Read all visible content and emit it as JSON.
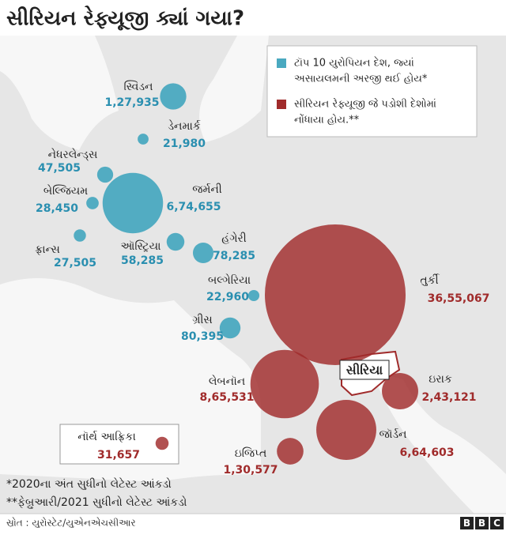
{
  "title": "સીરિયન રેફ્યૂજી ક્યાં ગયા?",
  "legend": [
    {
      "color": "#4aa9c0",
      "lines": [
        "ટૉપ 10 યુરોપિયન દેશ, જ્યાં",
        "અસાયલમની અરજી થઈ હોય*"
      ]
    },
    {
      "color": "#a02b2b",
      "lines": [
        "સીરિયન રેફ્યૂજી જે પડોશી દેશોમાં",
        "નોંધાયા હોય.**"
      ]
    }
  ],
  "origin_label": "સીરિયા",
  "points": [
    {
      "name": "સ્વિડન",
      "value": 127935,
      "value_label": "1,27,935",
      "group": 0
    },
    {
      "name": "ડેનમાર્ક",
      "value": 21980,
      "value_label": "21,980",
      "group": 0
    },
    {
      "name": "નેધરલેન્ડ્સ",
      "value": 47505,
      "value_label": "47,505",
      "group": 0
    },
    {
      "name": "બેલ્જિયમ",
      "value": 28450,
      "value_label": "28,450",
      "group": 0
    },
    {
      "name": "જર્મની",
      "value": 674655,
      "value_label": "6,74,655",
      "group": 0
    },
    {
      "name": "ફ્રાન્સ",
      "value": 27505,
      "value_label": "27,505",
      "group": 0
    },
    {
      "name": "ઑસ્ટ્રિયા",
      "value": 58285,
      "value_label": "58,285",
      "group": 0
    },
    {
      "name": "હંગેરી",
      "value": 78285,
      "value_label": "78,285",
      "group": 0
    },
    {
      "name": "બલ્ગેરિયા",
      "value": 22960,
      "value_label": "22,960",
      "group": 0
    },
    {
      "name": "ગ્રીસ",
      "value": 80395,
      "value_label": "80,395",
      "group": 0
    },
    {
      "name": "તુર્કી",
      "value": 3655067,
      "value_label": "36,55,067",
      "group": 1
    },
    {
      "name": "લેબનૉન",
      "value": 865531,
      "value_label": "8,65,531",
      "group": 1
    },
    {
      "name": "ઇરાક",
      "value": 243121,
      "value_label": "2,43,121",
      "group": 1
    },
    {
      "name": "જૉર્ડન",
      "value": 664603,
      "value_label": "6,64,603",
      "group": 1
    },
    {
      "name": "ઇજિપ્ત",
      "value": 130577,
      "value_label": "1,30,577",
      "group": 1
    },
    {
      "name": "નૉર્થ આફ્રિકા",
      "value": 31657,
      "value_label": "31,657",
      "group": 1
    }
  ],
  "footnotes": [
    "*2020ના અંત સુધીનો લેટેસ્ટ આંકડો",
    "**ફેબ્રુઆરી/2021 સુધીનો લેટેસ્ટ આંકડો"
  ],
  "source": "સ્રોત : યુરોસ્ટેટ/યુએનએચસીઆર",
  "logo": [
    "B",
    "B",
    "C"
  ]
}
